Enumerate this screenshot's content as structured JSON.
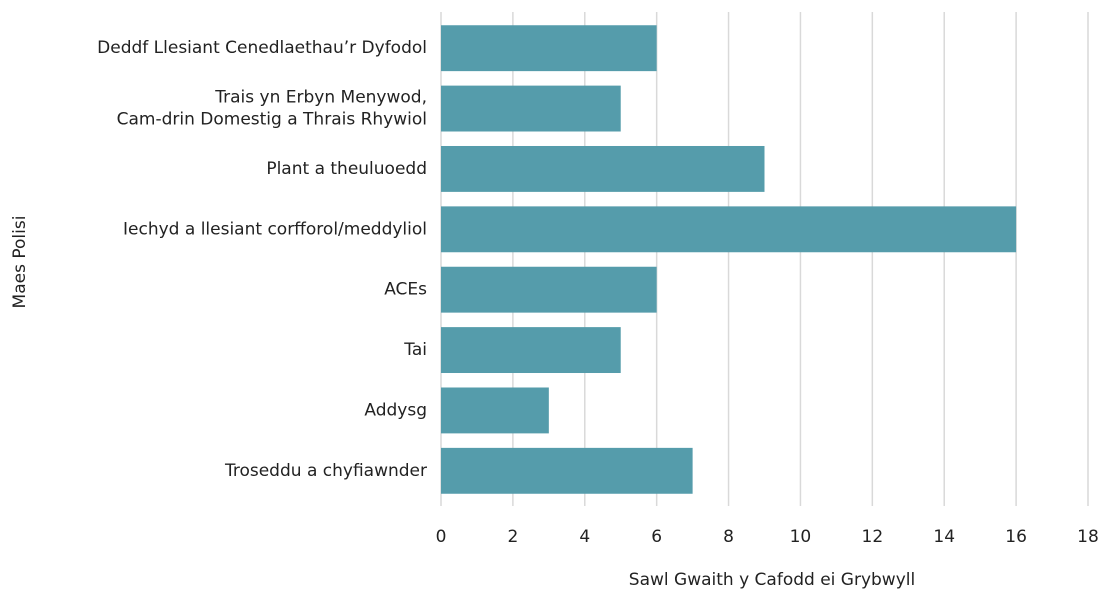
{
  "chart_data": {
    "type": "bar",
    "orientation": "horizontal",
    "categories": [
      "Deddf Llesiant Cenedlaethau’r Dyfodol",
      "Trais yn Erbyn Menywod,\nCam-drin Domestig a Thrais Rhywiol",
      "Plant a theuluoedd",
      "Iechyd a llesiant corfforol/meddyliol",
      "ACEs",
      "Tai",
      "Addysg",
      "Troseddu a chyfiawnder"
    ],
    "values": [
      6,
      5,
      9,
      16,
      6,
      5,
      3,
      7
    ],
    "color": "#559cab",
    "x_label": "Sawl Gwaith y Cafodd ei Grybwyll",
    "y_label": "Maes Polisi",
    "xlim": [
      0,
      18
    ],
    "xticks": [
      0,
      2,
      4,
      6,
      8,
      10,
      12,
      14,
      16,
      18
    ],
    "grid": true
  }
}
